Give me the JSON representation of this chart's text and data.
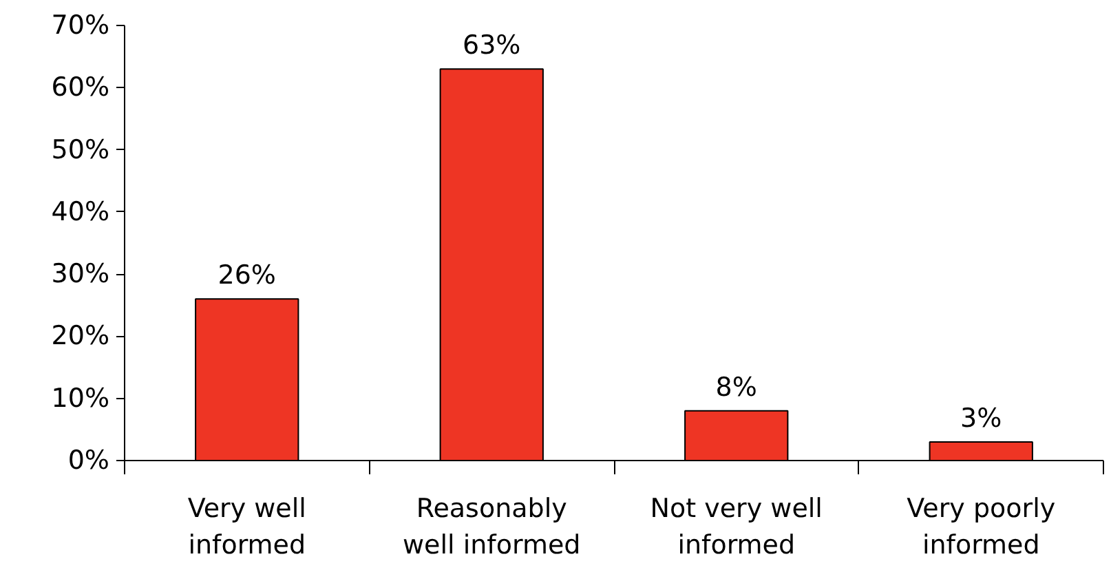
{
  "chart_data": {
    "type": "bar",
    "categories": [
      "Very well informed",
      "Reasonably well informed",
      "Not very well informed",
      "Very poorly informed"
    ],
    "values": [
      26,
      63,
      8,
      3
    ],
    "value_labels": [
      "26%",
      "63%",
      "8%",
      "3%"
    ],
    "color": "#ee3524",
    "ylim": [
      0,
      70
    ],
    "yticks": [
      {
        "value": 0,
        "label": "0%"
      },
      {
        "value": 10,
        "label": "10%"
      },
      {
        "value": 20,
        "label": "20%"
      },
      {
        "value": 30,
        "label": "30%"
      },
      {
        "value": 40,
        "label": "40%"
      },
      {
        "value": 50,
        "label": "50%"
      },
      {
        "value": 60,
        "label": "60%"
      },
      {
        "value": 70,
        "label": "70%"
      }
    ],
    "grid": false
  }
}
